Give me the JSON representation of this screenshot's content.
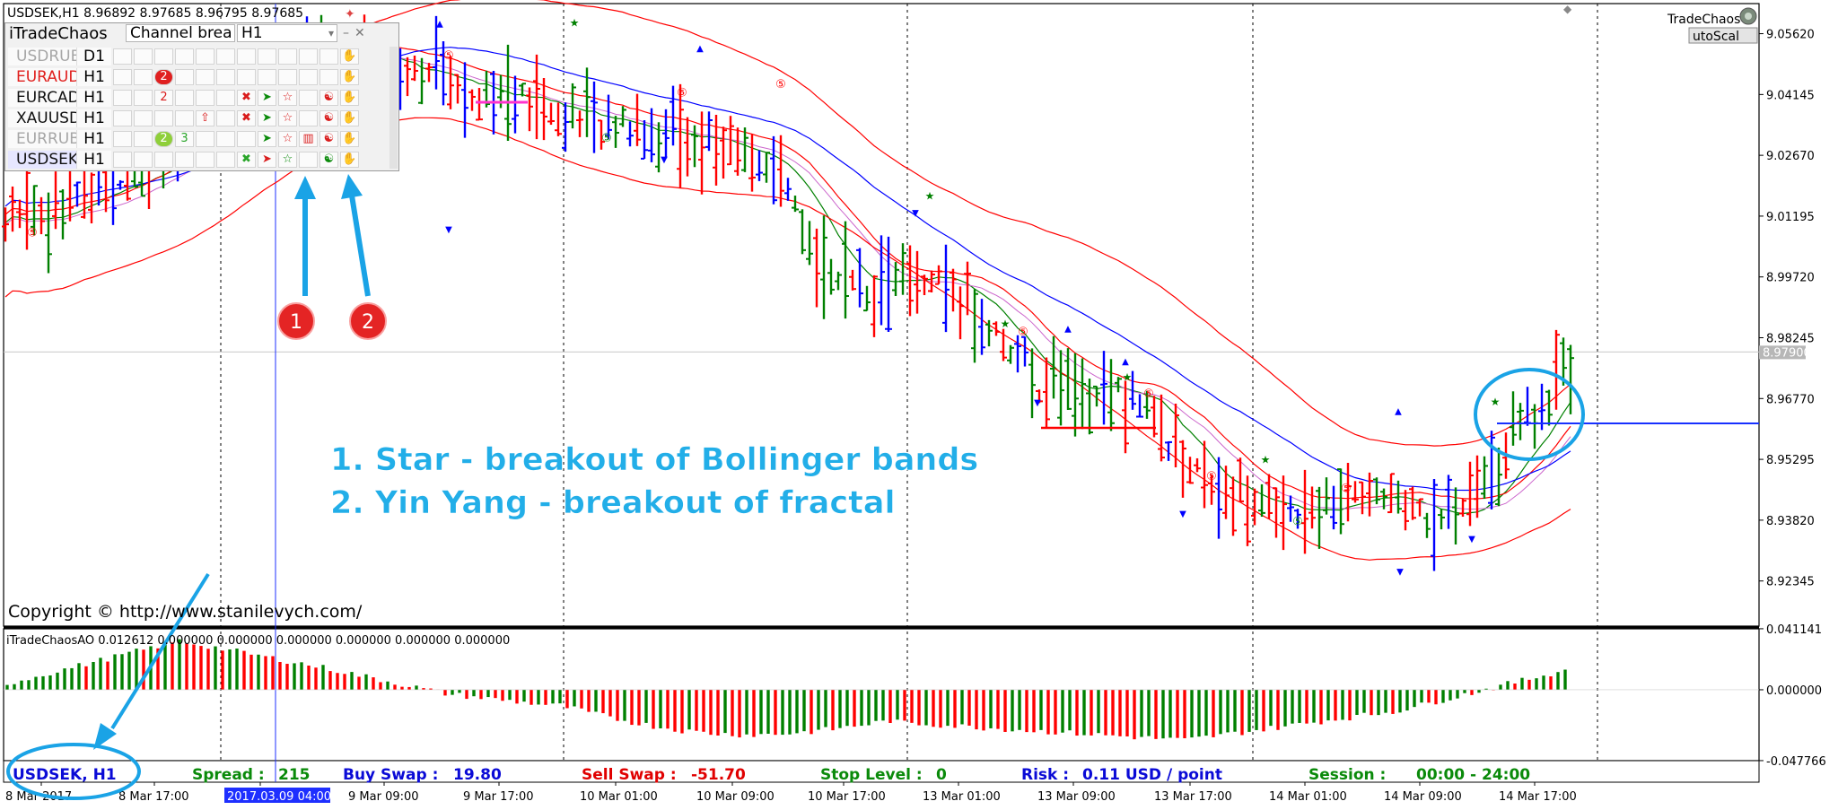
{
  "window": {
    "title": "USDSEK,H1  8.96892 8.97685 8.96795 8.97685",
    "brand": "TradeChaos",
    "brand_button": "utoScal"
  },
  "panel": {
    "name": "iTradeChaos",
    "strategy": "Channel brea",
    "timeframe": "H1",
    "rows": [
      {
        "symbol": "USDRUB",
        "tf": "D1",
        "sym_color": "#a6a6a6",
        "cells": [
          "",
          "",
          "",
          "",
          "",
          "",
          "",
          "",
          "",
          "",
          "",
          "✋"
        ]
      },
      {
        "symbol": "EURAUD",
        "tf": "H1",
        "sym_color": "#e0201e",
        "cells": [
          "",
          "",
          "2",
          "",
          "",
          "",
          "",
          "",
          "",
          "",
          "",
          "✋"
        ]
      },
      {
        "symbol": "EURCAD",
        "tf": "H1",
        "sym_color": "#111111",
        "cells": [
          "",
          "",
          "2",
          "",
          "",
          "",
          "✖",
          "➤",
          "☆",
          "",
          "☯",
          "✋"
        ]
      },
      {
        "symbol": "XAUUSD",
        "tf": "H1",
        "sym_color": "#111111",
        "cells": [
          "",
          "",
          "",
          "",
          "⇧",
          "",
          "✖",
          "➤",
          "☆",
          "",
          "☯",
          "✋"
        ]
      },
      {
        "symbol": "EURRUB",
        "tf": "H1",
        "sym_color": "#a6a6a6",
        "cells": [
          "",
          "",
          "2",
          "3",
          "",
          "",
          "",
          "➤",
          "☆",
          "▥",
          "☯",
          "✋"
        ]
      },
      {
        "symbol": "USDSEK",
        "tf": "H1",
        "sym_color": "#111111",
        "cells": [
          "",
          "",
          "",
          "",
          "",
          "",
          "✖",
          "➤",
          "☆",
          "",
          "☯",
          "✋"
        ]
      }
    ]
  },
  "annotations": {
    "line1": "1. Star - breakout of Bollinger bands",
    "line2": "2.  Yin Yang - breakout of fractal",
    "badge1": "1",
    "badge2": "2",
    "copyright": "Copyright © http://www.stanilevych.com/"
  },
  "chart_data": [
    {
      "type": "ohlc",
      "symbol": "USDSEK",
      "timeframe": "H1",
      "ohlc_header": [
        8.96892,
        8.97685,
        8.96795,
        8.97685
      ],
      "y_ticks": [
        "9.05620",
        "9.04145",
        "9.02670",
        "9.01195",
        "8.99720",
        "8.98245",
        "8.96770",
        "8.95295",
        "8.93820",
        "8.92345"
      ],
      "ylim": [
        8.9125,
        9.0635
      ],
      "current_price": "8.97900",
      "current_price_value": 8.979,
      "x_ticks": [
        "8 Mar 2017",
        "8 Mar 17:00",
        "2017.03.09 04:00",
        "9 Mar 09:00",
        "9 Mar 17:00",
        "10 Mar 01:00",
        "10 Mar 09:00",
        "10 Mar 17:00",
        "13 Mar 01:00",
        "13 Mar 09:00",
        "13 Mar 17:00",
        "14 Mar 01:00",
        "14 Mar 09:00",
        "14 Mar 17:00"
      ],
      "series_colors": {
        "bull": "#008000",
        "bear": "#ff0000",
        "neutral": "#0000ff",
        "ma_blue": "#0000ff",
        "ma_red": "#ff0000",
        "ma_green": "#008000"
      }
    },
    {
      "type": "bar",
      "indicator": "iTradeChaosAO",
      "header": "iTradeChaosAO 0.012612 0.000000 0.000000 0.000000 0.000000 0.000000 0.000000",
      "y_ticks": [
        "0.041141",
        "0.000000",
        "-0.047766"
      ],
      "ylim": [
        -0.0478,
        0.0411
      ],
      "colors": {
        "up": "#008000",
        "down": "#ff0000"
      }
    }
  ],
  "status_bar": {
    "symbol": "USDSEK, H1",
    "spread_label": "Spread :",
    "spread": "215",
    "buy_swap_label": "Buy Swap :",
    "buy_swap": "19.80",
    "sell_swap_label": "Sell Swap :",
    "sell_swap": "-51.70",
    "stop_level_label": "Stop Level :",
    "stop_level": "0",
    "risk_label": "Risk :",
    "risk": "0.11 USD / point",
    "session_label": "Session :",
    "session": "00:00 - 24:00"
  }
}
